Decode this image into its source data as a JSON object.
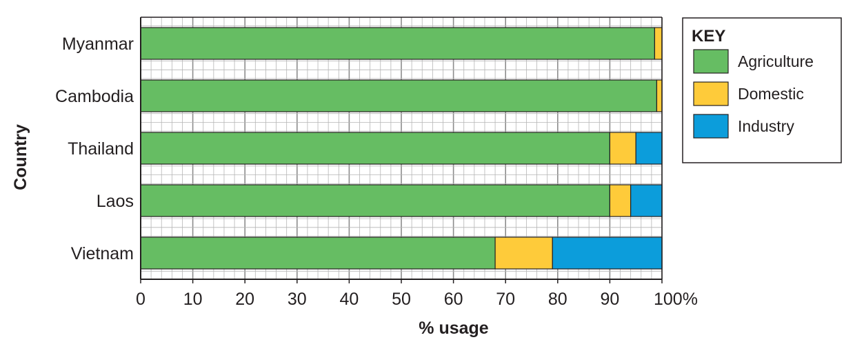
{
  "chart_data": {
    "type": "bar",
    "orientation": "horizontal",
    "stacked": true,
    "categories": [
      "Myanmar",
      "Cambodia",
      "Thailand",
      "Laos",
      "Vietnam"
    ],
    "series": [
      {
        "name": "Agriculture",
        "color": "#66bd63",
        "values": [
          98.6,
          99.0,
          90.0,
          90.0,
          68.0
        ]
      },
      {
        "name": "Domestic",
        "color": "#fecb3a",
        "values": [
          1.4,
          1.0,
          5.0,
          4.0,
          11.0
        ]
      },
      {
        "name": "Industry",
        "color": "#0c9ddb",
        "values": [
          0,
          0,
          5.0,
          6.0,
          21.0
        ]
      }
    ],
    "xlim": [
      0,
      100
    ],
    "x_ticks": [
      0,
      10,
      20,
      30,
      40,
      50,
      60,
      70,
      80,
      90,
      100
    ],
    "x_tick_labels": [
      "0",
      "10",
      "20",
      "30",
      "40",
      "50",
      "60",
      "70",
      "80",
      "90",
      "100%"
    ],
    "xlabel": "% usage",
    "ylabel": "Country",
    "grid": true,
    "legend": {
      "title": "KEY",
      "placement": "right",
      "entries": [
        "Agriculture",
        "Domestic",
        "Industry"
      ]
    }
  }
}
